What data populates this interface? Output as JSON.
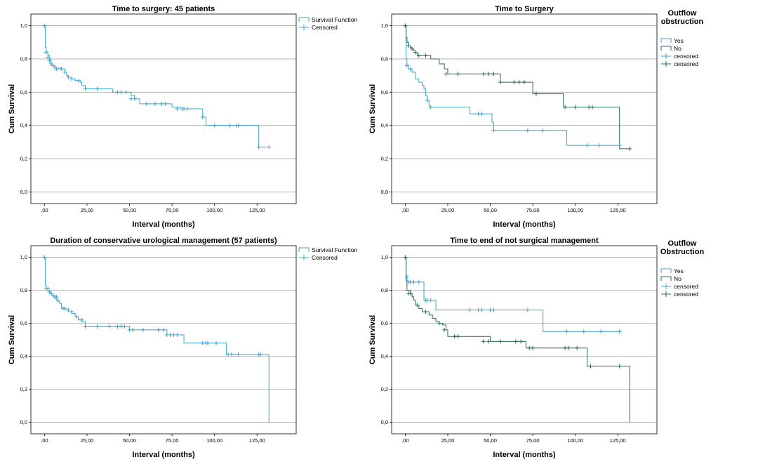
{
  "chart_data": [
    {
      "type": "line",
      "step": true,
      "title": "Time to surgery: 45 patients",
      "xlabel": "Interval (months)",
      "ylabel": "Cum Survival",
      "xlim": [
        -8,
        148
      ],
      "ylim": [
        -0.07,
        1.07
      ],
      "xticks": [
        "00",
        "25",
        "50",
        "75",
        "100",
        "125"
      ],
      "xtick_labels": [
        ",00",
        "25,00",
        "50,00",
        "75,00",
        "100,00",
        "125,00"
      ],
      "yticks": [
        "0.0",
        "0.2",
        "0.4",
        "0.6",
        "0.8",
        "1.0"
      ],
      "ytick_labels": [
        "0,0",
        "0,2",
        "0,4",
        "0,6",
        "0,8",
        "1,0"
      ],
      "grid": true,
      "legend": {
        "title": "",
        "placement": "top-right",
        "items": [
          "Survival Function",
          "Censored"
        ]
      },
      "series": [
        {
          "name": "Survival Function",
          "color": "#3ca3cc",
          "x": [
            0,
            0.5,
            1,
            1.5,
            2,
            3,
            3.5,
            4,
            5,
            6,
            7,
            8,
            10,
            12,
            13,
            14,
            16,
            18,
            21,
            22,
            24,
            25,
            30,
            40,
            50,
            51,
            53,
            56,
            60,
            65,
            70,
            75,
            80,
            85,
            90,
            93,
            94,
            95,
            100,
            105,
            110,
            115,
            125,
            126,
            132
          ],
          "y": [
            1.0,
            0.87,
            0.845,
            0.84,
            0.82,
            0.8,
            0.78,
            0.77,
            0.76,
            0.75,
            0.74,
            0.745,
            0.74,
            0.72,
            0.7,
            0.69,
            0.68,
            0.67,
            0.66,
            0.64,
            0.62,
            0.62,
            0.62,
            0.6,
            0.6,
            0.58,
            0.56,
            0.53,
            0.53,
            0.53,
            0.53,
            0.51,
            0.5,
            0.5,
            0.5,
            0.45,
            0.45,
            0.4,
            0.4,
            0.4,
            0.4,
            0.4,
            0.4,
            0.27,
            0.27
          ]
        },
        {
          "name": "Censored",
          "color": "#3ca3cc",
          "censored": true,
          "x": [
            0,
            1,
            2,
            3,
            4,
            5,
            6,
            7,
            10,
            12,
            14,
            16,
            20,
            24,
            31,
            43,
            45,
            48,
            51,
            53,
            60,
            65,
            69,
            71,
            78,
            81,
            82,
            84,
            93,
            100,
            109,
            113,
            114,
            126,
            132
          ],
          "y": [
            1.0,
            0.84,
            0.81,
            0.79,
            0.77,
            0.76,
            0.75,
            0.74,
            0.74,
            0.72,
            0.69,
            0.68,
            0.67,
            0.62,
            0.62,
            0.6,
            0.6,
            0.6,
            0.56,
            0.56,
            0.53,
            0.53,
            0.53,
            0.53,
            0.5,
            0.5,
            0.5,
            0.5,
            0.45,
            0.4,
            0.4,
            0.4,
            0.4,
            0.27,
            0.27
          ]
        }
      ]
    },
    {
      "type": "line",
      "step": true,
      "title": "Time to Surgery",
      "xlabel": "Interval (months)",
      "ylabel": "Cum Survival",
      "xlim": [
        -8,
        148
      ],
      "ylim": [
        -0.07,
        1.07
      ],
      "xticks": [
        "00",
        "25",
        "50",
        "75",
        "100",
        "125"
      ],
      "xtick_labels": [
        ",00",
        "25,00",
        "50,00",
        "75,00",
        "100,00",
        "125,00"
      ],
      "yticks": [
        "0.0",
        "0.2",
        "0.4",
        "0.6",
        "0.8",
        "1.0"
      ],
      "ytick_labels": [
        "0,0",
        "0,2",
        "0,4",
        "0,6",
        "0,8",
        "1,0"
      ],
      "grid": true,
      "legend": {
        "title": [
          "Outflow",
          "obstruction"
        ],
        "placement": "right",
        "items": [
          "Yes",
          "No",
          "censored",
          "censored"
        ]
      },
      "series": [
        {
          "name": "Yes",
          "color": "#3ca3cc",
          "x": [
            0,
            0.5,
            1,
            2,
            4,
            6,
            8,
            10,
            11,
            12,
            13,
            14,
            18,
            25,
            35,
            38,
            40,
            48,
            51,
            52,
            55,
            70,
            80,
            90,
            95,
            105,
            115,
            126
          ],
          "y": [
            1.0,
            0.8,
            0.76,
            0.74,
            0.72,
            0.68,
            0.66,
            0.64,
            0.62,
            0.58,
            0.55,
            0.51,
            0.51,
            0.51,
            0.51,
            0.47,
            0.47,
            0.47,
            0.42,
            0.37,
            0.37,
            0.37,
            0.37,
            0.37,
            0.28,
            0.28,
            0.28,
            0.28
          ]
        },
        {
          "name": "No",
          "color": "#2a6a5c",
          "x": [
            0,
            0.5,
            1,
            2,
            3,
            4,
            5,
            6,
            7,
            10,
            15,
            20,
            23,
            25,
            30,
            40,
            50,
            55,
            56,
            60,
            70,
            75,
            80,
            85,
            93,
            95,
            110,
            125,
            126,
            132
          ],
          "y": [
            1.0,
            0.93,
            0.9,
            0.88,
            0.87,
            0.86,
            0.85,
            0.84,
            0.82,
            0.82,
            0.8,
            0.77,
            0.74,
            0.71,
            0.71,
            0.71,
            0.71,
            0.71,
            0.66,
            0.66,
            0.66,
            0.59,
            0.59,
            0.59,
            0.51,
            0.51,
            0.51,
            0.51,
            0.26,
            0.26
          ]
        },
        {
          "name": "censored",
          "color": "#3ca3cc",
          "censored": true,
          "x": [
            0,
            1,
            3,
            13,
            15,
            43,
            45,
            52,
            72,
            81,
            107,
            114,
            126
          ],
          "y": [
            1.0,
            0.76,
            0.74,
            0.55,
            0.51,
            0.47,
            0.47,
            0.37,
            0.37,
            0.37,
            0.28,
            0.28,
            0.28
          ]
        },
        {
          "name": "censored",
          "color": "#2a6a5c",
          "censored": true,
          "x": [
            0,
            2,
            4,
            6,
            8,
            12,
            24,
            31,
            46,
            49,
            52,
            56,
            64,
            67,
            70,
            77,
            94,
            100,
            108,
            110,
            132
          ],
          "y": [
            1.0,
            0.88,
            0.86,
            0.84,
            0.82,
            0.82,
            0.71,
            0.71,
            0.71,
            0.71,
            0.71,
            0.66,
            0.66,
            0.66,
            0.66,
            0.59,
            0.51,
            0.51,
            0.51,
            0.51,
            0.26
          ]
        }
      ]
    },
    {
      "type": "line",
      "step": true,
      "title": "Duration of conservative urological management (57 patients)",
      "xlabel": "Interval (months)",
      "ylabel": "Cum Survival",
      "xlim": [
        -8,
        148
      ],
      "ylim": [
        -0.07,
        1.07
      ],
      "xticks": [
        "00",
        "25",
        "50",
        "75",
        "100",
        "125"
      ],
      "xtick_labels": [
        ",00",
        "25,00",
        "50,00",
        "75,00",
        "100,00",
        "125,00"
      ],
      "yticks": [
        "0.0",
        "0.2",
        "0.4",
        "0.6",
        "0.8",
        "1.0"
      ],
      "ytick_labels": [
        "0,0",
        "0,2",
        "0,4",
        "0,6",
        "0,8",
        "1,0"
      ],
      "grid": true,
      "legend": {
        "title": "",
        "placement": "top-right",
        "items": [
          "Survival Function",
          "Censored"
        ]
      },
      "series": [
        {
          "name": "Survival Function",
          "color": "#3ca3cc",
          "x": [
            0,
            0.5,
            1,
            2,
            3,
            4,
            5,
            6,
            7,
            8,
            9,
            10,
            12,
            14,
            16,
            18,
            20,
            22,
            24,
            25,
            30,
            35,
            40,
            45,
            50,
            55,
            60,
            65,
            70,
            72,
            75,
            80,
            82,
            90,
            100,
            105,
            107,
            110,
            120,
            130,
            132
          ],
          "y": [
            1.0,
            0.83,
            0.81,
            0.8,
            0.78,
            0.77,
            0.76,
            0.75,
            0.74,
            0.73,
            0.72,
            0.69,
            0.68,
            0.67,
            0.66,
            0.64,
            0.62,
            0.61,
            0.58,
            0.58,
            0.58,
            0.58,
            0.58,
            0.58,
            0.56,
            0.56,
            0.56,
            0.56,
            0.56,
            0.53,
            0.53,
            0.53,
            0.48,
            0.48,
            0.48,
            0.48,
            0.41,
            0.41,
            0.41,
            0.41,
            0.0
          ]
        },
        {
          "name": "Censored",
          "color": "#3ca3cc",
          "censored": true,
          "x": [
            0,
            1,
            2,
            3,
            4,
            5,
            6,
            7,
            8,
            11,
            12,
            14,
            16,
            19,
            22,
            24,
            31,
            38,
            43,
            45,
            47,
            50,
            52,
            58,
            67,
            70,
            72,
            74,
            76,
            78,
            93,
            95,
            96,
            101,
            108,
            110,
            114,
            126,
            127
          ],
          "y": [
            1.0,
            0.81,
            0.81,
            0.79,
            0.78,
            0.77,
            0.76,
            0.76,
            0.74,
            0.69,
            0.69,
            0.68,
            0.67,
            0.64,
            0.62,
            0.58,
            0.58,
            0.58,
            0.58,
            0.58,
            0.58,
            0.56,
            0.56,
            0.56,
            0.56,
            0.56,
            0.53,
            0.53,
            0.53,
            0.53,
            0.48,
            0.48,
            0.48,
            0.48,
            0.41,
            0.41,
            0.41,
            0.41,
            0.41
          ]
        }
      ]
    },
    {
      "type": "line",
      "step": true,
      "title": "Time to end of not surgical management",
      "xlabel": "Interval (months)",
      "ylabel": "Cum Survival",
      "xlim": [
        -8,
        148
      ],
      "ylim": [
        -0.07,
        1.07
      ],
      "xticks": [
        "00",
        "25",
        "50",
        "75",
        "100",
        "125"
      ],
      "xtick_labels": [
        ",00",
        "25,00",
        "50,00",
        "75,00",
        "100,00",
        "125,00"
      ],
      "yticks": [
        "0.0",
        "0.2",
        "0.4",
        "0.6",
        "0.8",
        "1.0"
      ],
      "ytick_labels": [
        "0,0",
        "0,2",
        "0,4",
        "0,6",
        "0,8",
        "1,0"
      ],
      "grid": true,
      "legend": {
        "title": [
          "Outflow",
          "Obstruction"
        ],
        "placement": "right",
        "items": [
          "Yes",
          "No",
          "censored",
          "censored"
        ]
      },
      "series": [
        {
          "name": "Yes",
          "color": "#3ca3cc",
          "x": [
            0,
            0.5,
            1,
            2,
            5,
            10,
            11,
            15,
            18,
            20,
            30,
            40,
            50,
            60,
            70,
            80,
            81,
            90,
            100,
            110,
            120,
            127
          ],
          "y": [
            1.0,
            0.88,
            0.85,
            0.85,
            0.85,
            0.85,
            0.74,
            0.74,
            0.68,
            0.68,
            0.68,
            0.68,
            0.68,
            0.68,
            0.68,
            0.68,
            0.55,
            0.55,
            0.55,
            0.55,
            0.55,
            0.55
          ]
        },
        {
          "name": "No",
          "color": "#2a6a5c",
          "x": [
            0,
            0.5,
            1,
            3,
            4,
            5,
            6,
            8,
            10,
            14,
            16,
            18,
            20,
            22,
            24,
            25,
            30,
            40,
            45,
            50,
            60,
            70,
            71,
            80,
            95,
            100,
            105,
            107,
            110,
            120,
            125,
            132
          ],
          "y": [
            1.0,
            0.86,
            0.8,
            0.78,
            0.76,
            0.74,
            0.71,
            0.69,
            0.67,
            0.65,
            0.63,
            0.61,
            0.6,
            0.59,
            0.56,
            0.52,
            0.52,
            0.52,
            0.52,
            0.49,
            0.49,
            0.49,
            0.45,
            0.45,
            0.45,
            0.45,
            0.45,
            0.34,
            0.34,
            0.34,
            0.34,
            0.0
          ]
        },
        {
          "name": "censored",
          "color": "#3ca3cc",
          "censored": true,
          "x": [
            0,
            1,
            2,
            3,
            5,
            8,
            12,
            13,
            15,
            38,
            43,
            45,
            50,
            52,
            72,
            95,
            105,
            115,
            126
          ],
          "y": [
            1.0,
            0.88,
            0.85,
            0.85,
            0.85,
            0.85,
            0.74,
            0.74,
            0.74,
            0.68,
            0.68,
            0.68,
            0.68,
            0.68,
            0.68,
            0.55,
            0.55,
            0.55,
            0.55
          ]
        },
        {
          "name": "censored",
          "color": "#2a6a5c",
          "censored": true,
          "x": [
            0,
            2,
            3,
            7,
            12,
            20,
            23,
            29,
            31,
            46,
            49,
            56,
            65,
            68,
            73,
            75,
            94,
            96,
            101,
            109,
            126
          ],
          "y": [
            1.0,
            0.78,
            0.78,
            0.71,
            0.67,
            0.6,
            0.56,
            0.52,
            0.52,
            0.49,
            0.49,
            0.49,
            0.49,
            0.49,
            0.45,
            0.45,
            0.45,
            0.45,
            0.45,
            0.34,
            0.34
          ]
        }
      ]
    }
  ]
}
